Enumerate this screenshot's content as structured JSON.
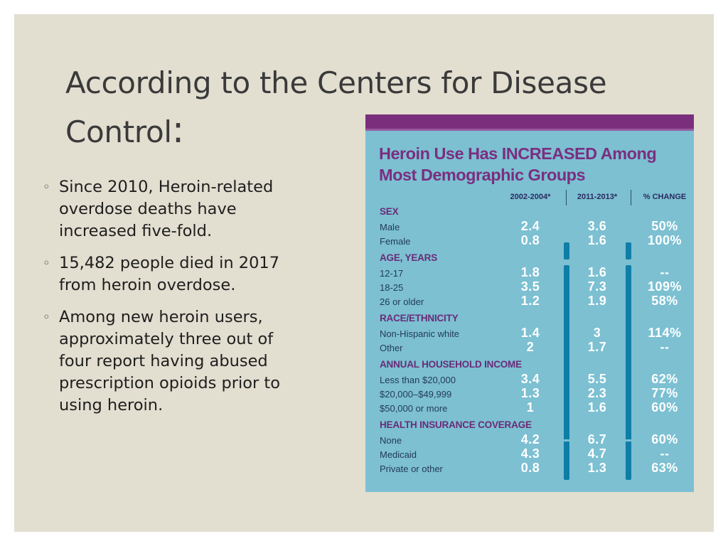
{
  "slide": {
    "title_main": "According to the Centers for Disease Control",
    "title_colon": ":",
    "bullet_marker": "◦",
    "bullets": [
      "Since 2010, Heroin-related overdose deaths have increased five-fold.",
      "15,482 people died in 2017 from heroin overdose.",
      "Among new heroin users, approximately three out of four report having abused prescription opioids prior to using heroin."
    ]
  },
  "infographic": {
    "title": "Heroin Use Has INCREASED Among Most Demographic Groups",
    "columns": [
      "2002-2004*",
      "2011-2013*",
      "% CHANGE"
    ],
    "sections": [
      {
        "heading": "SEX",
        "rows": [
          {
            "label": "Male",
            "v1": "2.4",
            "v2": "3.6",
            "change": "50%"
          },
          {
            "label": "Female",
            "v1": "0.8",
            "v2": "1.6",
            "change": "100%"
          }
        ]
      },
      {
        "heading": "AGE, YEARS",
        "rows": [
          {
            "label": "12-17",
            "v1": "1.8",
            "v2": "1.6",
            "change": "--"
          },
          {
            "label": "18-25",
            "v1": "3.5",
            "v2": "7.3",
            "change": "109%"
          },
          {
            "label": "26 or older",
            "v1": "1.2",
            "v2": "1.9",
            "change": "58%"
          }
        ]
      },
      {
        "heading": "RACE/ETHNICITY",
        "rows": [
          {
            "label": "Non-Hispanic white",
            "v1": "1.4",
            "v2": "3",
            "change": "114%"
          },
          {
            "label": "Other",
            "v1": "2",
            "v2": "1.7",
            "change": "--"
          }
        ]
      },
      {
        "heading": "ANNUAL HOUSEHOLD INCOME",
        "rows": [
          {
            "label": "Less than $20,000",
            "v1": "3.4",
            "v2": "5.5",
            "change": "62%"
          },
          {
            "label": "$20,000–$49,999",
            "v1": "1.3",
            "v2": "2.3",
            "change": "77%"
          },
          {
            "label": "$50,000 or more",
            "v1": "1",
            "v2": "1.6",
            "change": "60%"
          }
        ]
      },
      {
        "heading": "HEALTH INSURANCE COVERAGE",
        "rows": [
          {
            "label": "None",
            "v1": "4.2",
            "v2": "6.7",
            "change": "60%"
          },
          {
            "label": "Medicaid",
            "v1": "4.3",
            "v2": "4.7",
            "change": "--"
          },
          {
            "label": "Private or other",
            "v1": "0.8",
            "v2": "1.3",
            "change": "63%"
          }
        ]
      }
    ]
  },
  "colors": {
    "slide_background": "#e2ded0",
    "infographic_background": "#7cc0d2",
    "infographic_band": "#7a2f7d",
    "infographic_title": "#7b2e80",
    "section_heading": "#6a2b78",
    "bar": "#0e7ea6"
  }
}
